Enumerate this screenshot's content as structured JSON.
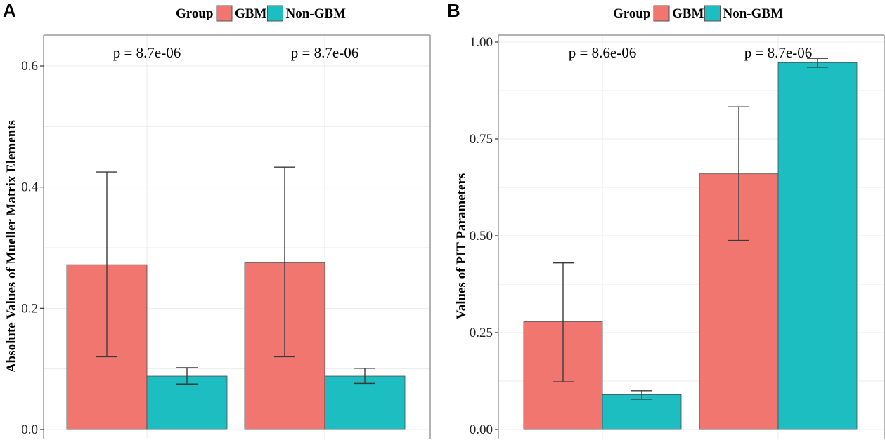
{
  "colors": {
    "GBM": "#F27670",
    "Non-GBM": "#1DBEC1",
    "grid": "#ebebeb",
    "frame": "#9a9a9a",
    "error": "#3a3a3a"
  },
  "chart_data": [
    {
      "panel": "A",
      "type": "bar",
      "legend_title": "Group",
      "legend_position": "top",
      "series": [
        {
          "name": "GBM",
          "values": [
            0.272,
            0.275
          ],
          "error_low": [
            0.12,
            0.12
          ],
          "error_high": [
            0.425,
            0.433
          ]
        },
        {
          "name": "Non-GBM",
          "values": [
            0.088,
            0.088
          ],
          "error_low": [
            0.075,
            0.076
          ],
          "error_high": [
            0.102,
            0.101
          ]
        }
      ],
      "groups": 2,
      "annotations": [
        "p = 8.7e-06",
        "p = 8.7e-06"
      ],
      "ylabel": "Absolute Values of Mueller Matrix Elements",
      "ylim": [
        0,
        0.65
      ],
      "yticks": [
        0.0,
        0.2,
        0.4,
        0.6
      ],
      "ytick_labels": [
        "0.0",
        "0.2",
        "0.4",
        "0.6"
      ],
      "grid": true
    },
    {
      "panel": "B",
      "type": "bar",
      "legend_title": "Group",
      "legend_position": "top",
      "series": [
        {
          "name": "GBM",
          "values": [
            0.278,
            0.66
          ],
          "error_low": [
            0.123,
            0.488
          ],
          "error_high": [
            0.43,
            0.833
          ]
        },
        {
          "name": "Non-GBM",
          "values": [
            0.09,
            0.947
          ],
          "error_low": [
            0.078,
            0.935
          ],
          "error_high": [
            0.1,
            0.958
          ]
        }
      ],
      "groups": 2,
      "annotations": [
        "p = 8.6e-06",
        "p = 8.7e-06"
      ],
      "ylabel": "Values of PIT Parameters",
      "ylim": [
        0,
        1.0
      ],
      "yticks": [
        0.0,
        0.25,
        0.5,
        0.75,
        1.0
      ],
      "ytick_labels": [
        "0.00",
        "0.25",
        "0.50",
        "0.75",
        "1.00"
      ],
      "grid": true
    }
  ]
}
